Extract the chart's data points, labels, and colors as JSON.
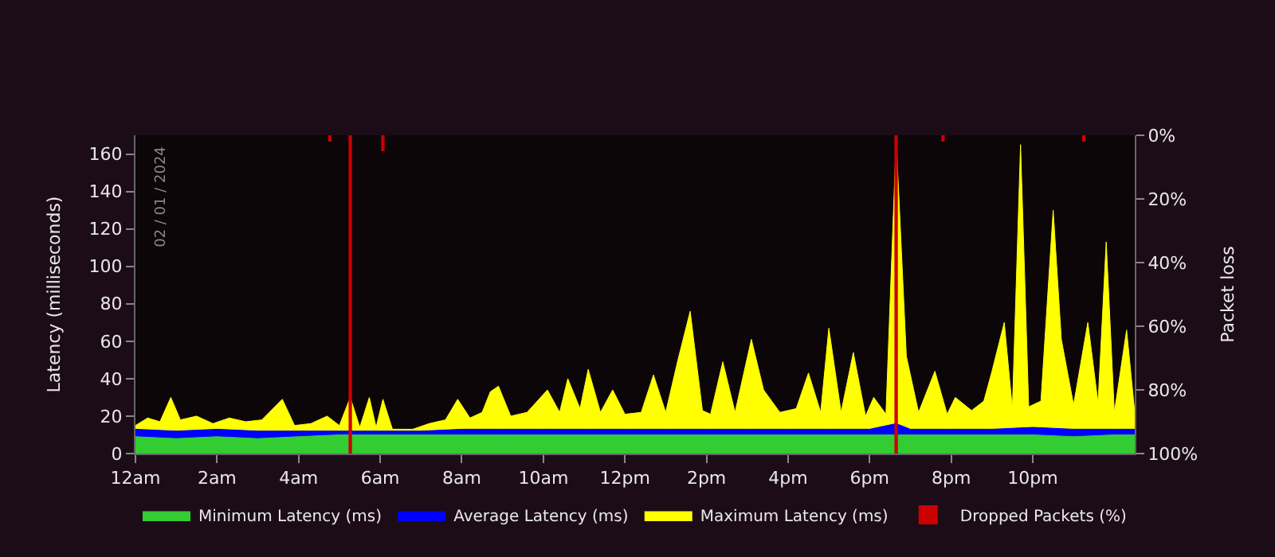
{
  "chart_data": {
    "type": "area",
    "ylabel": "Latency (milliseconds)",
    "y2label": "Packet loss",
    "annotations": [
      "02 / 01 / 2024"
    ],
    "xlim": [
      "2024-01-02T00:00",
      "2024-01-03T00:30"
    ],
    "xticks": [
      {
        "value": "2024-01-02T00:00",
        "label": "12am"
      },
      {
        "value": "2024-01-02T02:00",
        "label": "2am"
      },
      {
        "value": "2024-01-02T04:00",
        "label": "4am"
      },
      {
        "value": "2024-01-02T06:00",
        "label": "6am"
      },
      {
        "value": "2024-01-02T08:00",
        "label": "8am"
      },
      {
        "value": "2024-01-02T10:00",
        "label": "10am"
      },
      {
        "value": "2024-01-02T12:00",
        "label": "12pm"
      },
      {
        "value": "2024-01-02T14:00",
        "label": "2pm"
      },
      {
        "value": "2024-01-02T16:00",
        "label": "4pm"
      },
      {
        "value": "2024-01-02T18:00",
        "label": "6pm"
      },
      {
        "value": "2024-01-02T20:00",
        "label": "8pm"
      },
      {
        "value": "2024-01-02T22:00",
        "label": "10pm"
      }
    ],
    "ylim": [
      0,
      170
    ],
    "yticks": [
      0,
      20,
      40,
      60,
      80,
      100,
      120,
      140,
      160
    ],
    "y2lim": [
      100,
      0
    ],
    "y2ticks": [
      {
        "value": 0,
        "label": "0%"
      },
      {
        "value": 20,
        "label": "20%"
      },
      {
        "value": 40,
        "label": "40%"
      },
      {
        "value": 60,
        "label": "60%"
      },
      {
        "value": 80,
        "label": "80%"
      },
      {
        "value": 100,
        "label": "100%"
      }
    ],
    "grid": false,
    "legend": "bottom",
    "marker": "none",
    "series": [
      {
        "name": "Minimum Latency (ms)",
        "color": "#33cc33",
        "x": [
          "2024-01-02T00:00",
          "2024-01-02T01:00",
          "2024-01-02T02:00",
          "2024-01-02T03:00",
          "2024-01-02T04:00",
          "2024-01-02T05:00",
          "2024-01-02T06:00",
          "2024-01-02T07:00",
          "2024-01-02T08:00",
          "2024-01-02T09:00",
          "2024-01-02T10:00",
          "2024-01-02T11:00",
          "2024-01-02T12:00",
          "2024-01-02T13:00",
          "2024-01-02T14:00",
          "2024-01-02T15:00",
          "2024-01-02T16:00",
          "2024-01-02T17:00",
          "2024-01-02T18:00",
          "2024-01-02T19:00",
          "2024-01-02T20:00",
          "2024-01-02T21:00",
          "2024-01-02T22:00",
          "2024-01-02T23:00",
          "2024-01-03T00:00",
          "2024-01-03T00:30"
        ],
        "values": [
          9,
          8,
          9,
          8,
          9,
          10,
          10,
          10,
          10,
          10,
          10,
          10,
          10,
          10,
          10,
          10,
          10,
          10,
          10,
          10,
          10,
          10,
          10,
          9,
          10,
          10
        ]
      },
      {
        "name": "Average Latency (ms)",
        "color": "#0000ff",
        "x": [
          "2024-01-02T00:00",
          "2024-01-02T01:00",
          "2024-01-02T02:00",
          "2024-01-02T03:00",
          "2024-01-02T04:00",
          "2024-01-02T05:00",
          "2024-01-02T06:00",
          "2024-01-02T07:00",
          "2024-01-02T08:00",
          "2024-01-02T09:00",
          "2024-01-02T10:00",
          "2024-01-02T11:00",
          "2024-01-02T12:00",
          "2024-01-02T13:00",
          "2024-01-02T14:00",
          "2024-01-02T15:00",
          "2024-01-02T16:00",
          "2024-01-02T17:00",
          "2024-01-02T18:00",
          "2024-01-02T18:39",
          "2024-01-02T19:00",
          "2024-01-02T20:00",
          "2024-01-02T21:00",
          "2024-01-02T22:00",
          "2024-01-02T23:00",
          "2024-01-03T00:00",
          "2024-01-03T00:30"
        ],
        "values": [
          13,
          12,
          13,
          12,
          12,
          12,
          12,
          12,
          13,
          13,
          13,
          13,
          13,
          13,
          13,
          13,
          13,
          13,
          13,
          16,
          13,
          13,
          13,
          14,
          13,
          13,
          13
        ]
      },
      {
        "name": "Maximum Latency (ms)",
        "color": "#ffff00",
        "x": [
          "2024-01-02T00:00",
          "2024-01-02T00:18",
          "2024-01-02T00:36",
          "2024-01-02T00:52",
          "2024-01-02T01:06",
          "2024-01-02T01:30",
          "2024-01-02T01:54",
          "2024-01-02T02:18",
          "2024-01-02T02:42",
          "2024-01-02T03:06",
          "2024-01-02T03:36",
          "2024-01-02T03:54",
          "2024-01-02T04:18",
          "2024-01-02T04:42",
          "2024-01-02T05:00",
          "2024-01-02T05:16",
          "2024-01-02T05:30",
          "2024-01-02T05:44",
          "2024-01-02T05:54",
          "2024-01-02T06:04",
          "2024-01-02T06:18",
          "2024-01-02T06:48",
          "2024-01-02T07:12",
          "2024-01-02T07:36",
          "2024-01-02T07:54",
          "2024-01-02T08:12",
          "2024-01-02T08:30",
          "2024-01-02T08:42",
          "2024-01-02T08:54",
          "2024-01-02T09:12",
          "2024-01-02T09:36",
          "2024-01-02T10:06",
          "2024-01-02T10:24",
          "2024-01-02T10:36",
          "2024-01-02T10:54",
          "2024-01-02T11:06",
          "2024-01-02T11:24",
          "2024-01-02T11:42",
          "2024-01-02T12:00",
          "2024-01-02T12:24",
          "2024-01-02T12:42",
          "2024-01-02T13:00",
          "2024-01-02T13:18",
          "2024-01-02T13:36",
          "2024-01-02T13:54",
          "2024-01-02T14:06",
          "2024-01-02T14:24",
          "2024-01-02T14:42",
          "2024-01-02T15:06",
          "2024-01-02T15:24",
          "2024-01-02T15:48",
          "2024-01-02T16:12",
          "2024-01-02T16:30",
          "2024-01-02T16:48",
          "2024-01-02T17:00",
          "2024-01-02T17:18",
          "2024-01-02T17:36",
          "2024-01-02T17:54",
          "2024-01-02T18:06",
          "2024-01-02T18:24",
          "2024-01-02T18:39",
          "2024-01-02T18:54",
          "2024-01-02T19:12",
          "2024-01-02T19:36",
          "2024-01-02T19:54",
          "2024-01-02T20:06",
          "2024-01-02T20:30",
          "2024-01-02T20:48",
          "2024-01-02T21:00",
          "2024-01-02T21:18",
          "2024-01-02T21:30",
          "2024-01-02T21:42",
          "2024-01-02T21:54",
          "2024-01-02T22:12",
          "2024-01-02T22:30",
          "2024-01-02T22:42",
          "2024-01-02T23:00",
          "2024-01-02T23:21",
          "2024-01-02T23:36",
          "2024-01-02T23:48",
          "2024-01-03T00:00",
          "2024-01-03T00:18",
          "2024-01-03T00:30"
        ],
        "values": [
          15,
          19,
          17,
          30,
          18,
          20,
          16,
          19,
          17,
          18,
          29,
          15,
          16,
          20,
          15,
          30,
          14,
          30,
          14,
          29,
          13,
          13,
          16,
          18,
          29,
          19,
          22,
          33,
          36,
          20,
          22,
          34,
          22,
          40,
          24,
          45,
          22,
          34,
          21,
          22,
          42,
          22,
          50,
          76,
          23,
          21,
          49,
          22,
          61,
          34,
          22,
          24,
          43,
          22,
          67,
          22,
          54,
          20,
          30,
          21,
          168,
          52,
          22,
          44,
          21,
          30,
          23,
          28,
          44,
          70,
          24,
          165,
          25,
          28,
          130,
          61,
          26,
          70,
          27,
          113,
          22,
          66,
          22
        ]
      },
      {
        "name": "Dropped Packets (%)",
        "color": "#cc0000",
        "type": "bar",
        "axis": "y2",
        "x": [
          "2024-01-02T04:46",
          "2024-01-02T05:16",
          "2024-01-02T06:04",
          "2024-01-02T18:39",
          "2024-01-02T19:48",
          "2024-01-02T23:15"
        ],
        "values": [
          2,
          100,
          5,
          100,
          2,
          2
        ]
      }
    ]
  }
}
